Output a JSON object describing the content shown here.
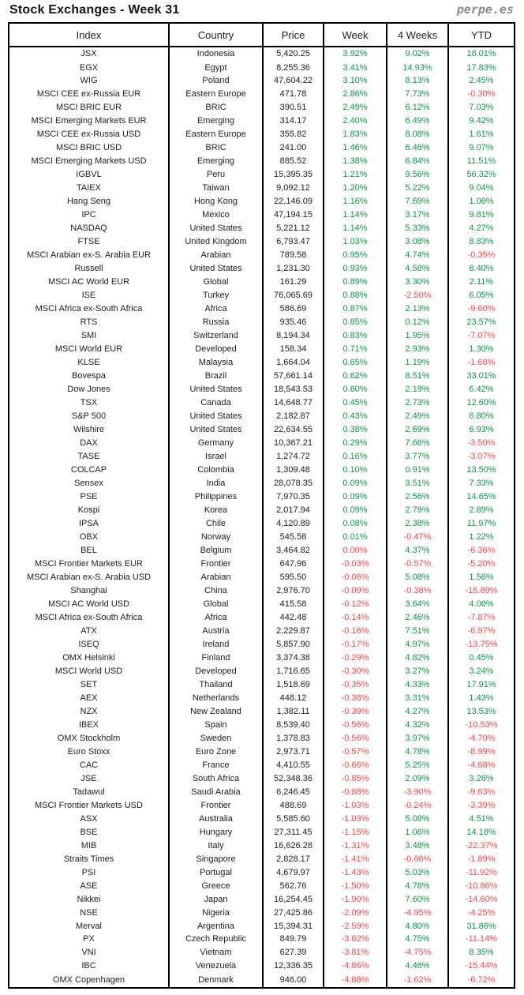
{
  "title": "Stock Exchanges - Week 31",
  "brand": "perpe.es",
  "colors": {
    "positive": "#0a9a40",
    "negative": "#ff4343",
    "text": "#1d1d1d",
    "border": "#000000",
    "brand_gray": "#8a8a8a"
  },
  "chart_data": {
    "type": "table",
    "title": "Stock Exchanges - Week 31",
    "columns": [
      "Index",
      "Country",
      "Price",
      "Week",
      "4 Weeks",
      "YTD"
    ],
    "rows": [
      [
        "JSX",
        "Indonesia",
        "5,420.25",
        "3.92%",
        "9.02%",
        "18.01%"
      ],
      [
        "EGX",
        "Egypt",
        "8,255.36",
        "3.41%",
        "14.93%",
        "17.83%"
      ],
      [
        "WIG",
        "Poland",
        "47,604.22",
        "3.10%",
        "8.13%",
        "2.45%"
      ],
      [
        "MSCI CEE ex-Russia EUR",
        "Eastern Europe",
        "471.78",
        "2.86%",
        "7.73%",
        "-0.30%"
      ],
      [
        "MSCI BRIC EUR",
        "BRIC",
        "390.51",
        "2.49%",
        "6.12%",
        "7.03%"
      ],
      [
        "MSCI Emerging Markets EUR",
        "Emerging",
        "314.17",
        "2.40%",
        "6.49%",
        "9.42%"
      ],
      [
        "MSCI CEE ex-Russia USD",
        "Eastern Europe",
        "355.82",
        "1.83%",
        "8.08%",
        "1.61%"
      ],
      [
        "MSCI BRIC USD",
        "BRIC",
        "241.00",
        "1.46%",
        "6.46%",
        "9.07%"
      ],
      [
        "MSCI Emerging Markets USD",
        "Emerging",
        "885.52",
        "1.38%",
        "6.84%",
        "11.51%"
      ],
      [
        "IGBVL",
        "Peru",
        "15,395.35",
        "1.21%",
        "9.56%",
        "56.32%"
      ],
      [
        "TAIEX",
        "Taiwan",
        "9,092.12",
        "1.20%",
        "5.22%",
        "9.04%"
      ],
      [
        "Hang Seng",
        "Hong Kong",
        "22,146.09",
        "1.16%",
        "7.69%",
        "1.06%"
      ],
      [
        "IPC",
        "Mexico",
        "47,194.15",
        "1.14%",
        "3.17%",
        "9.81%"
      ],
      [
        "NASDAQ",
        "United States",
        "5,221.12",
        "1.14%",
        "5.33%",
        "4.27%"
      ],
      [
        "FTSE",
        "United Kingdom",
        "6,793.47",
        "1.03%",
        "3.08%",
        "8.83%"
      ],
      [
        "MSCI Arabian ex-S. Arabia EUR",
        "Arabian",
        "789.58",
        "0.95%",
        "4.74%",
        "-0.35%"
      ],
      [
        "Russell",
        "United States",
        "1,231.30",
        "0.93%",
        "4.58%",
        "8.40%"
      ],
      [
        "MSCI AC World EUR",
        "Global",
        "161.29",
        "0.89%",
        "3.30%",
        "2.11%"
      ],
      [
        "ISE",
        "Turkey",
        "76,065.69",
        "0.88%",
        "-2.50%",
        "6.05%"
      ],
      [
        "MSCI Africa ex-South Africa",
        "Africa",
        "586.69",
        "0.87%",
        "2.13%",
        "-9.60%"
      ],
      [
        "RTS",
        "Russia",
        "935.46",
        "0.85%",
        "0.12%",
        "23.57%"
      ],
      [
        "SMI",
        "Switzerland",
        "8,194.34",
        "0.83%",
        "1.95%",
        "-7.07%"
      ],
      [
        "MSCI World EUR",
        "Developed",
        "158.34",
        "0.71%",
        "2.93%",
        "1.30%"
      ],
      [
        "KLSE",
        "Malaysia",
        "1,664.04",
        "0.65%",
        "1.19%",
        "-1.68%"
      ],
      [
        "Bovespa",
        "Brazil",
        "57,661.14",
        "0.62%",
        "8.51%",
        "33.01%"
      ],
      [
        "Dow Jones",
        "United States",
        "18,543.53",
        "0.60%",
        "2.19%",
        "6.42%"
      ],
      [
        "TSX",
        "Canada",
        "14,648.77",
        "0.45%",
        "2.73%",
        "12.60%"
      ],
      [
        "S&P 500",
        "United States",
        "2,182.87",
        "0.43%",
        "2.49%",
        "6.80%"
      ],
      [
        "Wilshire",
        "United States",
        "22,634.55",
        "0.38%",
        "2.69%",
        "6.93%"
      ],
      [
        "DAX",
        "Germany",
        "10,367.21",
        "0.29%",
        "7.66%",
        "-3.50%"
      ],
      [
        "TASE",
        "Israel",
        "1,274.72",
        "0.16%",
        "3.77%",
        "-3.07%"
      ],
      [
        "COLCAP",
        "Colombia",
        "1,309.48",
        "0.10%",
        "0.91%",
        "13.50%"
      ],
      [
        "Sensex",
        "India",
        "28,078.35",
        "0.09%",
        "3.51%",
        "7.33%"
      ],
      [
        "PSE",
        "Philippines",
        "7,970.35",
        "0.09%",
        "2.56%",
        "14.65%"
      ],
      [
        "Kospi",
        "Korea",
        "2,017.94",
        "0.09%",
        "2.79%",
        "2.89%"
      ],
      [
        "IPSA",
        "Chile",
        "4,120.89",
        "0.08%",
        "2.38%",
        "11.97%"
      ],
      [
        "OBX",
        "Norway",
        "545.58",
        "0.01%",
        "-0.47%",
        "1.22%"
      ],
      [
        "BEL",
        "Belgium",
        "3,464.82",
        "0.00%",
        "4.37%",
        "-6.36%"
      ],
      [
        "MSCI Frontier Markets EUR",
        "Frontier",
        "647.96",
        "-0.03%",
        "-0.57%",
        "-5.20%"
      ],
      [
        "MSCI Arabian ex-S. Arabia USD",
        "Arabian",
        "595.50",
        "-0.06%",
        "5.08%",
        "1.56%"
      ],
      [
        "Shanghai",
        "China",
        "2,976.70",
        "-0.09%",
        "-0.38%",
        "-15.89%"
      ],
      [
        "MSCI AC World USD",
        "Global",
        "415.58",
        "-0.12%",
        "3.64%",
        "4.06%"
      ],
      [
        "MSCI Africa ex-South Africa",
        "Africa",
        "442.48",
        "-0.14%",
        "2.46%",
        "-7.87%"
      ],
      [
        "ATX",
        "Austria",
        "2,229.87",
        "-0.16%",
        "7.51%",
        "-6.97%"
      ],
      [
        "ISEQ",
        "Ireland",
        "5,857.90",
        "-0.17%",
        "4.97%",
        "-13.75%"
      ],
      [
        "OMX Helsinki",
        "Finland",
        "3,374.38",
        "-0.29%",
        "4.82%",
        "0.45%"
      ],
      [
        "MSCI World USD",
        "Developed",
        "1,716.65",
        "-0.30%",
        "3.27%",
        "3.24%"
      ],
      [
        "SET",
        "Thailand",
        "1,518.69",
        "-0.35%",
        "4.33%",
        "17.91%"
      ],
      [
        "AEX",
        "Netherlands",
        "448.12",
        "-0.38%",
        "3.31%",
        "1.43%"
      ],
      [
        "NZX",
        "New Zealand",
        "1,382.11",
        "-0.39%",
        "4.27%",
        "13.53%"
      ],
      [
        "IBEX",
        "Spain",
        "8,539.40",
        "-0.56%",
        "4.32%",
        "-10.53%"
      ],
      [
        "OMX Stockholm",
        "Sweden",
        "1,378.83",
        "-0.56%",
        "3.97%",
        "-4.70%"
      ],
      [
        "Euro Stoxx",
        "Euro Zone",
        "2,973.71",
        "-0.57%",
        "4.78%",
        "-8.99%"
      ],
      [
        "CAC",
        "France",
        "4,410.55",
        "-0.66%",
        "5.25%",
        "-4.88%"
      ],
      [
        "JSE",
        "South Africa",
        "52,348.36",
        "-0.85%",
        "2.09%",
        "3.26%"
      ],
      [
        "Tadawul",
        "Saudi Arabia",
        "6,246.45",
        "-0.88%",
        "-3.90%",
        "-9.63%"
      ],
      [
        "MSCI Frontier Markets USD",
        "Frontier",
        "488.69",
        "-1.03%",
        "-0.24%",
        "-3.39%"
      ],
      [
        "ASX",
        "Australia",
        "5,585.60",
        "-1.03%",
        "5.08%",
        "4.51%"
      ],
      [
        "BSE",
        "Hungary",
        "27,311.45",
        "-1.15%",
        "1.06%",
        "14.18%"
      ],
      [
        "MIB",
        "Italy",
        "16,626.28",
        "-1.31%",
        "3.48%",
        "-22.37%"
      ],
      [
        "Straits Times",
        "Singapore",
        "2,828.17",
        "-1.41%",
        "-0.66%",
        "-1.89%"
      ],
      [
        "PSI",
        "Portugal",
        "4,679.97",
        "-1.43%",
        "5.03%",
        "-11.92%"
      ],
      [
        "ASE",
        "Greece",
        "562.76",
        "-1.50%",
        "4.78%",
        "-10.86%"
      ],
      [
        "Nikkei",
        "Japan",
        "16,254.45",
        "-1.90%",
        "7.60%",
        "-14.60%"
      ],
      [
        "NSE",
        "Nigeria",
        "27,425.86",
        "-2.09%",
        "-4.95%",
        "-4.25%"
      ],
      [
        "Merval",
        "Argentina",
        "15,394.31",
        "-2.59%",
        "4.80%",
        "31.86%"
      ],
      [
        "PX",
        "Czech Republic",
        "849.79",
        "-3.62%",
        "4.75%",
        "-11.14%"
      ],
      [
        "VNI",
        "Vietnam",
        "627.39",
        "-3.81%",
        "-4.75%",
        "8.35%"
      ],
      [
        "IBC",
        "Venezuela",
        "12,336.35",
        "-4.86%",
        "4.46%",
        "-15.44%"
      ],
      [
        "OMX Copenhagen",
        "Denmark",
        "946.00",
        "-4.88%",
        "-1.62%",
        "-6.72%"
      ]
    ],
    "layout_hints": {
      "percent_columns": [
        3,
        4,
        5
      ],
      "positive_color_rule": "green if value > 0, red if value <= 0",
      "grid": "outer border, header border and column separators only"
    }
  }
}
